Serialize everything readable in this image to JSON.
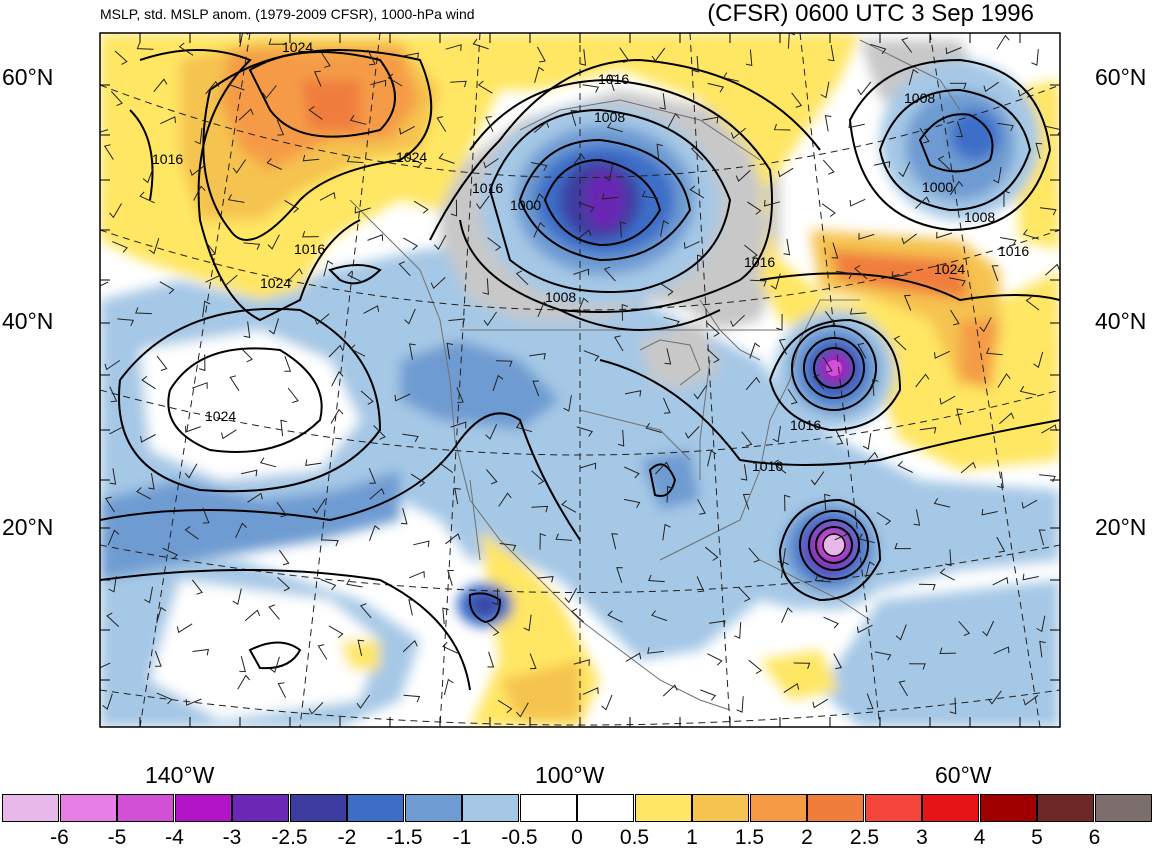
{
  "header": {
    "left": "MSLP, std. MSLP anom. (1979-2009 CFSR), 1000-hPa wind",
    "right": "(CFSR) 0600 UTC 3 Sep 1996"
  },
  "lat_labels": [
    "60°N",
    "40°N",
    "20°N"
  ],
  "lon_labels": [
    "140°W",
    "100°W",
    "60°W"
  ],
  "isobar_labels": [
    "1024",
    "1016",
    "1024",
    "1016",
    "1024",
    "1016",
    "1016",
    "1008",
    "1016",
    "1000",
    "1008",
    "1008",
    "1000",
    "1008",
    "1016",
    "1024",
    "1016",
    "1016",
    "1024"
  ],
  "colorbar": {
    "colors": [
      "#e8b8e8",
      "#e67ee6",
      "#d250d6",
      "#b414c8",
      "#6a28b4",
      "#3c3ca0",
      "#3c6ec8",
      "#6e9bd2",
      "#a5c8e6",
      "#ffffff",
      "#ffffff",
      "#ffe664",
      "#f5c350",
      "#f59b46",
      "#f07d3c",
      "#f5463c",
      "#e61414",
      "#a00000",
      "#6e2828",
      "#7d6e6e"
    ],
    "labels": [
      "-6",
      "-5",
      "-4",
      "-3",
      "-2.5",
      "-2",
      "-1.5",
      "-1",
      "-0.5",
      "0",
      "0.5",
      "1",
      "1.5",
      "2",
      "2.5",
      "3",
      "4",
      "5",
      "6"
    ]
  }
}
